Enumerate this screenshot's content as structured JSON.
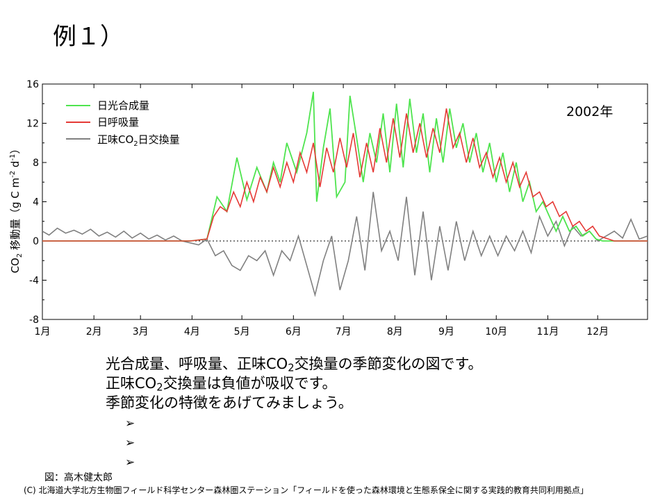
{
  "slide": {
    "title": "例１）",
    "desc1_pre": "光合成量、呼吸量、正味CO",
    "desc1_sub": "2",
    "desc1_post": "交換量の季節変化の図です。",
    "desc2_pre": "正味CO",
    "desc2_sub": "2",
    "desc2_post": "交換量は負値が吸収です。",
    "desc3": "季節変化の特徴をあげてみましょう。",
    "bullet_symbol": "➢",
    "credit": "図：高木健太郎",
    "copyright": "(C) 北海道大学北方生物圏フィールド科学センター森林圏ステーション「フィールドを使った森林環境と生態系保全に関する実践的教育共同利用拠点」"
  },
  "chart_data": {
    "type": "line",
    "year_label": "2002年",
    "ylabel_main": "CO",
    "ylabel_sub": "2",
    "ylabel_rest": " 移動量（g C m",
    "ylabel_sup1": "-2",
    "ylabel_mid": " d",
    "ylabel_sup2": "-1",
    "ylabel_end": "）",
    "ylim": [
      -8,
      16
    ],
    "xlim_days": [
      1,
      365
    ],
    "yticks": [
      "-8",
      "-4",
      "0",
      "4",
      "8",
      "12",
      "16"
    ],
    "xticks": [
      "1月",
      "2月",
      "3月",
      "4月",
      "5月",
      "6月",
      "7月",
      "8月",
      "9月",
      "10月",
      "11月",
      "12月"
    ],
    "legend_position": "top-left",
    "zero_line": "dotted",
    "colors": {
      "gpp": "#4ee44e",
      "resp": "#e53935",
      "nee": "#808080"
    },
    "series": [
      {
        "name": "日光合成量",
        "key": "gpp",
        "x": [
          1,
          90,
          100,
          106,
          112,
          118,
          124,
          130,
          136,
          140,
          144,
          148,
          154,
          160,
          164,
          166,
          170,
          174,
          178,
          183,
          186,
          190,
          194,
          198,
          202,
          206,
          210,
          214,
          218,
          222,
          226,
          230,
          234,
          238,
          242,
          246,
          250,
          254,
          258,
          262,
          266,
          270,
          274,
          278,
          282,
          286,
          290,
          294,
          298,
          302,
          306,
          310,
          314,
          318,
          322,
          326,
          330,
          334,
          338,
          345,
          365
        ],
        "values": [
          0,
          0,
          0.2,
          4.5,
          3.0,
          8.5,
          4.2,
          7.5,
          5.0,
          8.0,
          6.0,
          10.0,
          7.0,
          11.0,
          15.2,
          4.0,
          9.5,
          13.5,
          4.5,
          6.0,
          14.8,
          10.5,
          6.0,
          11.0,
          8.0,
          13.0,
          7.0,
          14.0,
          7.5,
          14.5,
          9.0,
          13.0,
          7.0,
          12.5,
          8.0,
          13.5,
          9.5,
          12.0,
          8.0,
          11.0,
          7.0,
          10.0,
          6.0,
          9.0,
          5.0,
          8.0,
          4.0,
          6.0,
          3.0,
          4.0,
          2.5,
          1.0,
          2.5,
          1.0,
          1.5,
          0.5,
          1.0,
          0.2,
          0,
          0,
          0
        ]
      },
      {
        "name": "日呼吸量",
        "key": "resp",
        "x": [
          1,
          90,
          100,
          104,
          108,
          112,
          116,
          120,
          124,
          128,
          132,
          136,
          140,
          144,
          148,
          152,
          156,
          160,
          164,
          168,
          172,
          176,
          180,
          184,
          188,
          192,
          196,
          200,
          204,
          208,
          212,
          216,
          220,
          224,
          228,
          232,
          236,
          240,
          244,
          248,
          252,
          256,
          260,
          264,
          268,
          272,
          276,
          280,
          284,
          288,
          292,
          296,
          300,
          304,
          308,
          312,
          316,
          320,
          324,
          328,
          332,
          336,
          345,
          365
        ],
        "values": [
          0,
          0,
          0.2,
          2.5,
          3.5,
          3.0,
          5.0,
          3.5,
          6.0,
          4.0,
          6.5,
          5.0,
          7.5,
          5.5,
          8.0,
          6.0,
          9.0,
          7.0,
          10.0,
          5.5,
          9.5,
          7.0,
          10.5,
          7.5,
          11.0,
          6.5,
          10.0,
          7.0,
          11.5,
          8.0,
          12.5,
          8.5,
          13.0,
          9.0,
          12.0,
          8.5,
          11.5,
          9.0,
          13.5,
          9.5,
          11.0,
          8.0,
          10.5,
          7.5,
          9.0,
          6.5,
          8.5,
          6.0,
          8.0,
          5.5,
          7.0,
          4.5,
          5.0,
          3.5,
          4.0,
          2.5,
          3.0,
          1.5,
          2.0,
          1.0,
          1.5,
          0.5,
          0,
          0
        ]
      },
      {
        "name": "正味CO2日交換量",
        "legend_pre": "正味CO",
        "legend_sub": "2",
        "legend_post": "日交換量",
        "key": "nee",
        "x": [
          1,
          5,
          10,
          15,
          20,
          25,
          30,
          35,
          40,
          45,
          50,
          55,
          60,
          65,
          70,
          75,
          80,
          85,
          90,
          95,
          100,
          105,
          110,
          115,
          120,
          125,
          130,
          135,
          140,
          145,
          150,
          155,
          160,
          165,
          170,
          175,
          180,
          185,
          190,
          195,
          200,
          205,
          210,
          215,
          220,
          225,
          230,
          235,
          240,
          245,
          250,
          255,
          260,
          265,
          270,
          275,
          280,
          285,
          290,
          295,
          300,
          305,
          310,
          315,
          320,
          325,
          330,
          335,
          340,
          345,
          350,
          355,
          360,
          365
        ],
        "values": [
          1.0,
          0.6,
          1.3,
          0.8,
          1.1,
          0.7,
          1.2,
          0.5,
          0.9,
          0.4,
          1.0,
          0.3,
          0.8,
          0.2,
          0.6,
          0.1,
          0.5,
          0.0,
          -0.2,
          -0.4,
          0.2,
          -1.5,
          -1.0,
          -2.5,
          -3.0,
          -1.5,
          -2.0,
          -1.0,
          -3.5,
          -1.0,
          -2.0,
          0.5,
          -2.5,
          -5.5,
          -2.0,
          0.5,
          -5.0,
          -2.0,
          2.5,
          -3.0,
          5.0,
          -1.0,
          1.0,
          -2.0,
          4.5,
          -3.5,
          3.0,
          -4.0,
          1.5,
          -3.0,
          2.0,
          -2.0,
          1.0,
          -1.5,
          0.5,
          -1.5,
          0.5,
          -1.0,
          1.0,
          -1.2,
          2.5,
          0.5,
          2.0,
          -0.5,
          1.5,
          0.5,
          1.0,
          0.0,
          0.5,
          1.0,
          0.3,
          2.2,
          0.2,
          0.5
        ]
      }
    ]
  }
}
